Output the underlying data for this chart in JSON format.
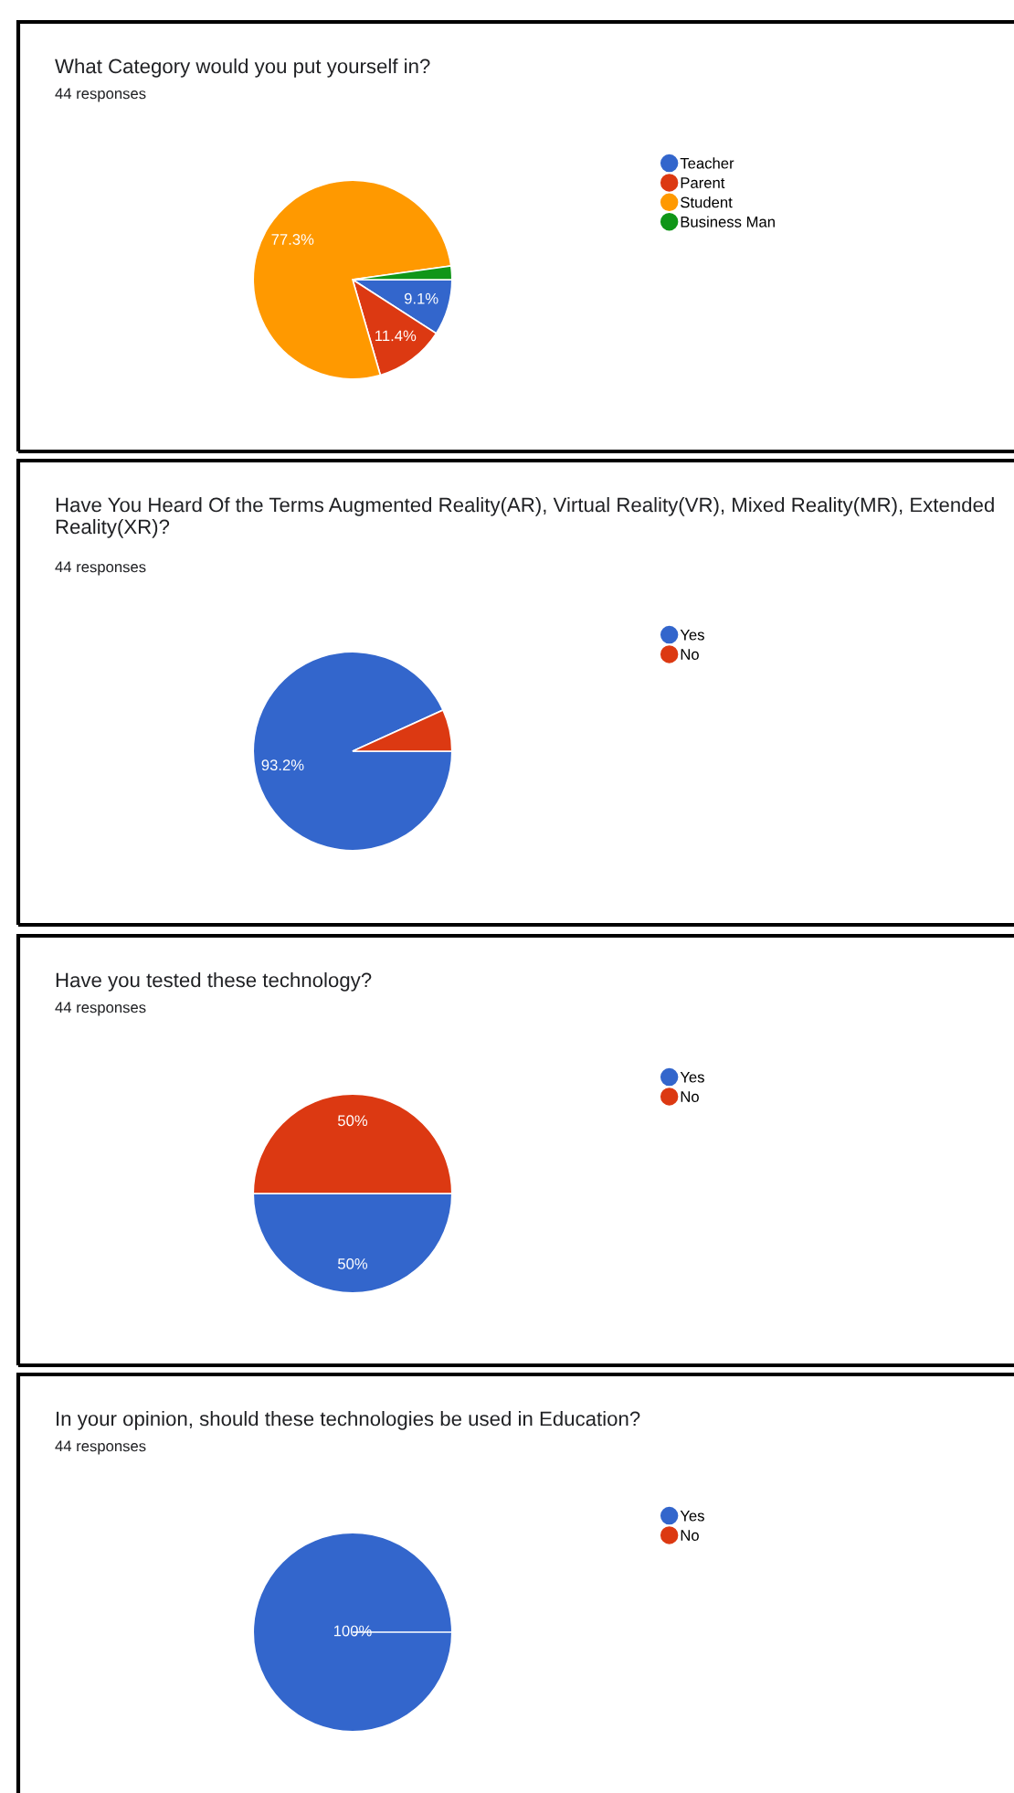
{
  "chart_data": [
    {
      "type": "pie",
      "title": "What Category would you put yourself in?",
      "subtitle": "44 responses",
      "categories": [
        "Teacher",
        "Parent",
        "Student",
        "Business Man"
      ],
      "values": [
        9.1,
        11.4,
        77.3,
        2.2
      ],
      "colors": [
        "#3366cc",
        "#dc3912",
        "#ff9900",
        "#109618"
      ],
      "value_labels": [
        "9.1%",
        "11.4%",
        "77.3%",
        null
      ],
      "legend": "right"
    },
    {
      "type": "pie",
      "title": "Have You Heard Of the Terms Augmented Reality(AR), Virtual Reality(VR), Mixed Reality(MR), Extended Reality(XR)?",
      "subtitle": "44 responses",
      "categories": [
        "Yes",
        "No"
      ],
      "values": [
        93.2,
        6.8
      ],
      "colors": [
        "#3366cc",
        "#dc3912"
      ],
      "value_labels": [
        "93.2%",
        null
      ],
      "legend": "right"
    },
    {
      "type": "pie",
      "title": "Have you tested these technology?",
      "subtitle": "44 responses",
      "categories": [
        "Yes",
        "No"
      ],
      "values": [
        50,
        50
      ],
      "colors": [
        "#3366cc",
        "#dc3912"
      ],
      "value_labels": [
        "50%",
        "50%"
      ],
      "legend": "right"
    },
    {
      "type": "pie",
      "title": "In your opinion, should these technologies be used in Education?",
      "subtitle": "44 responses",
      "categories": [
        "Yes",
        "No"
      ],
      "values": [
        100,
        0
      ],
      "colors": [
        "#3366cc",
        "#dc3912"
      ],
      "value_labels": [
        "100%",
        null
      ],
      "legend": "right"
    }
  ]
}
